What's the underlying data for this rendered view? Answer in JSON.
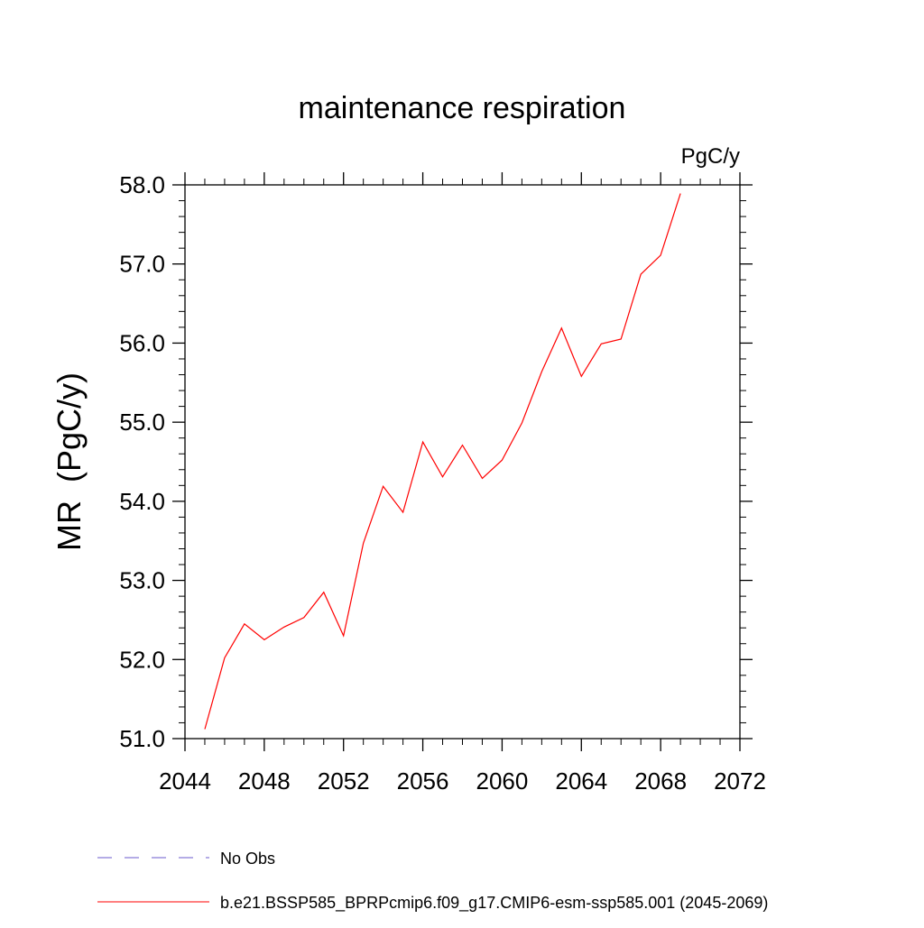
{
  "chart_data": {
    "type": "line",
    "title": "maintenance respiration",
    "units_label": "PgC/y",
    "ylabel": "MR  (PgC/y)",
    "xlabel": "",
    "xlim": [
      2044,
      2072
    ],
    "ylim": [
      51.0,
      58.0
    ],
    "x_ticks": [
      2044,
      2048,
      2052,
      2056,
      2060,
      2064,
      2068,
      2072
    ],
    "x_tick_labels": [
      "2044",
      "2048",
      "2052",
      "2056",
      "2060",
      "2064",
      "2068",
      "2072"
    ],
    "y_ticks": [
      51,
      52,
      53,
      54,
      55,
      56,
      57,
      58
    ],
    "y_tick_labels": [
      "51.0",
      "52.0",
      "53.0",
      "54.0",
      "55.0",
      "56.0",
      "57.0",
      "58.0"
    ],
    "grid": false,
    "legend_position": "bottom",
    "series": [
      {
        "name": "b.e21.BSSP585_BPRPcmip6.f09_g17.CMIP6-esm-ssp585.001 (2045-2069)",
        "color": "#ff0000",
        "line_style": "solid",
        "x": [
          2045,
          2046,
          2047,
          2048,
          2049,
          2050,
          2051,
          2052,
          2053,
          2054,
          2055,
          2056,
          2057,
          2058,
          2059,
          2060,
          2061,
          2062,
          2063,
          2064,
          2065,
          2066,
          2067,
          2068,
          2069
        ],
        "values": [
          51.12,
          52.02,
          52.45,
          52.25,
          52.41,
          52.53,
          52.85,
          52.3,
          53.47,
          54.19,
          53.86,
          54.75,
          54.31,
          54.71,
          54.29,
          54.52,
          54.99,
          55.64,
          56.19,
          55.58,
          55.99,
          56.05,
          56.87,
          57.11,
          57.89
        ]
      }
    ],
    "legend": [
      {
        "name": "No Obs",
        "color": "#6a5acd",
        "line_style": "dashed"
      },
      {
        "name": "b.e21.BSSP585_BPRPcmip6.f09_g17.CMIP6-esm-ssp585.001 (2045-2069)",
        "color": "#ff0000",
        "line_style": "solid"
      }
    ]
  }
}
